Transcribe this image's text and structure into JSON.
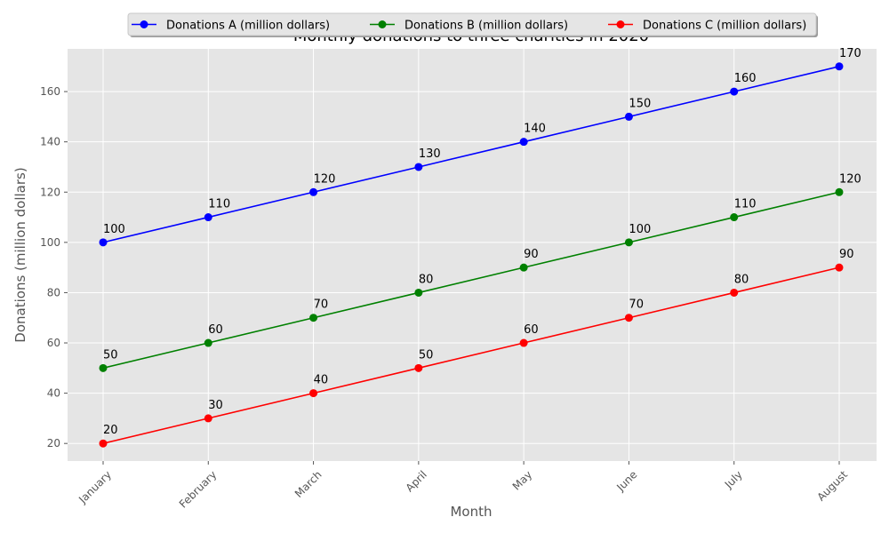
{
  "chart_data": {
    "type": "line",
    "title": "Monthly donations to three charities in 2020",
    "xlabel": "Month",
    "ylabel": "Donations (million dollars)",
    "categories": [
      "January",
      "February",
      "March",
      "April",
      "May",
      "June",
      "July",
      "August"
    ],
    "ylim": [
      13,
      177
    ],
    "yticks": [
      20,
      40,
      60,
      80,
      100,
      120,
      140,
      160
    ],
    "grid": true,
    "legend_position": "top-center",
    "series": [
      {
        "name": "Donations A (million dollars)",
        "color": "#0000ff",
        "values": [
          100,
          110,
          120,
          130,
          140,
          150,
          160,
          170
        ]
      },
      {
        "name": "Donations B (million dollars)",
        "color": "#008000",
        "values": [
          50,
          60,
          70,
          80,
          90,
          100,
          110,
          120
        ]
      },
      {
        "name": "Donations C (million dollars)",
        "color": "#ff0000",
        "values": [
          20,
          30,
          40,
          50,
          60,
          70,
          80,
          90
        ]
      }
    ]
  }
}
